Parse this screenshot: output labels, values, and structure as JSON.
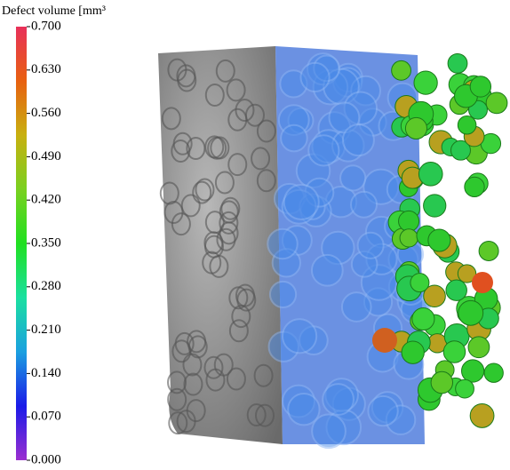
{
  "chart_data": {
    "type": "colorbar",
    "title": "Defect volume [mm³",
    "colors": [
      "#9b2fd0",
      "#1a1ae8",
      "#1aa0e0",
      "#1ae0a0",
      "#20e020",
      "#7ad020",
      "#c8b010",
      "#e86010",
      "#e8305a"
    ],
    "ylim": [
      0,
      0.7
    ],
    "yticks": [
      {
        "value": 0,
        "label": "0.000"
      },
      {
        "value": 0.07,
        "label": "0.070"
      },
      {
        "value": 0.14,
        "label": "0.140"
      },
      {
        "value": 0.21,
        "label": "0.210"
      },
      {
        "value": 0.28,
        "label": "0.280"
      },
      {
        "value": 0.35,
        "label": "0.350"
      },
      {
        "value": 0.42,
        "label": "0.420"
      },
      {
        "value": 0.49,
        "label": "0.490"
      },
      {
        "value": 0.56,
        "label": "0.560"
      },
      {
        "value": 0.63,
        "label": "0.630"
      },
      {
        "value": 0.7,
        "label": "0.700"
      }
    ]
  }
}
